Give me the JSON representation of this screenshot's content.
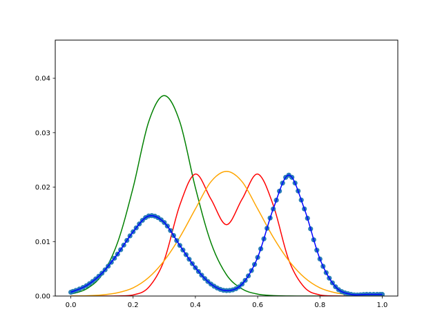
{
  "chart_data": {
    "type": "line",
    "title": "",
    "xlabel": "",
    "ylabel": "",
    "xlim": [
      -0.05,
      1.05
    ],
    "ylim": [
      0.0,
      0.047
    ],
    "grid": false,
    "x_ticks": [
      "0.0",
      "0.2",
      "0.4",
      "0.6",
      "0.8",
      "1.0"
    ],
    "y_ticks": [
      "0.00",
      "0.01",
      "0.02",
      "0.03",
      "0.04"
    ],
    "series": [
      {
        "color": "#008000",
        "style": "line",
        "x": [
          0.0,
          0.05,
          0.1,
          0.15,
          0.2,
          0.25,
          0.3,
          0.35,
          0.4,
          0.45,
          0.5,
          0.55,
          0.6,
          0.65,
          0.7,
          0.75,
          0.8,
          0.85,
          0.9,
          0.95,
          1.0
        ],
        "y": [
          0.00035,
          0.0013,
          0.0039,
          0.0098,
          0.0199,
          0.032,
          0.0368,
          0.032,
          0.0199,
          0.0098,
          0.0039,
          0.0013,
          0.00035,
          8e-05,
          1e-05,
          0.0,
          0.0,
          0.0,
          0.0,
          0.0,
          0.0
        ]
      },
      {
        "color": "#ff0000",
        "style": "line",
        "x": [
          0.0,
          0.05,
          0.1,
          0.15,
          0.2,
          0.25,
          0.3,
          0.35,
          0.4,
          0.45,
          0.5,
          0.55,
          0.6,
          0.65,
          0.7,
          0.75,
          0.8,
          0.85,
          0.9,
          0.95,
          1.0
        ],
        "y": [
          0.0,
          0.0,
          0.0,
          2e-05,
          0.0002,
          0.0016,
          0.0066,
          0.0167,
          0.0224,
          0.0178,
          0.0131,
          0.0178,
          0.0224,
          0.0167,
          0.0066,
          0.0016,
          0.0002,
          2e-05,
          0.0,
          0.0,
          0.0
        ]
      },
      {
        "color": "#ffa500",
        "style": "line",
        "x": [
          0.0,
          0.05,
          0.1,
          0.15,
          0.2,
          0.25,
          0.3,
          0.35,
          0.4,
          0.45,
          0.5,
          0.55,
          0.6,
          0.65,
          0.7,
          0.75,
          0.8,
          0.85,
          0.9,
          0.95,
          1.0
        ],
        "y": [
          1e-05,
          5e-05,
          0.0002,
          0.0006,
          0.0015,
          0.0034,
          0.0065,
          0.0108,
          0.016,
          0.021,
          0.0229,
          0.021,
          0.016,
          0.0108,
          0.0065,
          0.0034,
          0.0015,
          0.0006,
          0.0002,
          5e-05,
          1e-05
        ]
      },
      {
        "color": "#1f77b4",
        "style": "scatter",
        "x": [
          0.0,
          0.05,
          0.1,
          0.15,
          0.2,
          0.25,
          0.3,
          0.35,
          0.4,
          0.45,
          0.5,
          0.55,
          0.6,
          0.65,
          0.7,
          0.75,
          0.8,
          0.85,
          0.9,
          0.95,
          1.0
        ],
        "y": [
          0.0007,
          0.0019,
          0.0042,
          0.0077,
          0.0118,
          0.0147,
          0.0135,
          0.0093,
          0.0052,
          0.0022,
          0.001,
          0.0022,
          0.0071,
          0.016,
          0.0222,
          0.016,
          0.0068,
          0.0017,
          0.0003,
          0.0003,
          0.0003
        ]
      },
      {
        "color": "#0000ff",
        "style": "line",
        "x": [
          0.0,
          0.05,
          0.1,
          0.15,
          0.2,
          0.25,
          0.3,
          0.35,
          0.4,
          0.45,
          0.5,
          0.55,
          0.6,
          0.65,
          0.7,
          0.75,
          0.8,
          0.85,
          0.9,
          0.95,
          1.0
        ],
        "y": [
          0.0007,
          0.0019,
          0.0042,
          0.0077,
          0.0118,
          0.0147,
          0.0135,
          0.0093,
          0.0052,
          0.0022,
          0.001,
          0.0022,
          0.0071,
          0.016,
          0.0222,
          0.016,
          0.0068,
          0.0017,
          0.0003,
          0.0003,
          0.0003
        ]
      }
    ]
  }
}
